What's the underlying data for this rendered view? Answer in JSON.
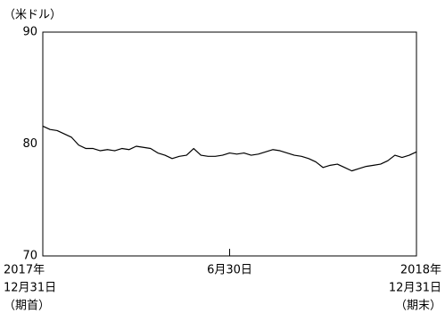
{
  "chart_data": {
    "type": "line",
    "y_label": "（米ドル）",
    "categories": [
      [
        "2017年",
        "12月31日",
        "（期首）"
      ],
      null,
      null,
      null,
      null,
      null,
      null,
      null,
      null,
      null,
      null,
      null,
      null,
      null,
      null,
      null,
      null,
      null,
      null,
      null,
      null,
      null,
      null,
      null,
      null,
      null,
      [
        "6月30日"
      ],
      null,
      null,
      null,
      null,
      null,
      null,
      null,
      null,
      null,
      null,
      null,
      null,
      null,
      null,
      null,
      null,
      null,
      null,
      null,
      null,
      null,
      null,
      null,
      null,
      null,
      [
        "2018年",
        "12月31日",
        "（期末）"
      ]
    ],
    "series": [
      {
        "color": "#000000",
        "values": [
          81.6,
          81.3,
          81.2,
          80.9,
          80.6,
          79.9,
          79.6,
          79.6,
          79.4,
          79.5,
          79.4,
          79.6,
          79.5,
          79.8,
          79.7,
          79.6,
          79.2,
          79.0,
          78.7,
          78.9,
          79.0,
          79.6,
          79.0,
          78.9,
          78.9,
          79.0,
          79.2,
          79.1,
          79.2,
          79.0,
          79.1,
          79.3,
          79.5,
          79.4,
          79.2,
          79.0,
          78.9,
          78.7,
          78.4,
          77.9,
          78.1,
          78.2,
          77.9,
          77.6,
          77.8,
          78.0,
          78.1,
          78.2,
          78.5,
          79.0,
          78.8,
          79.0,
          79.3
        ]
      }
    ],
    "ylim": [
      70,
      90
    ],
    "yticks": [
      70,
      80,
      90
    ]
  }
}
